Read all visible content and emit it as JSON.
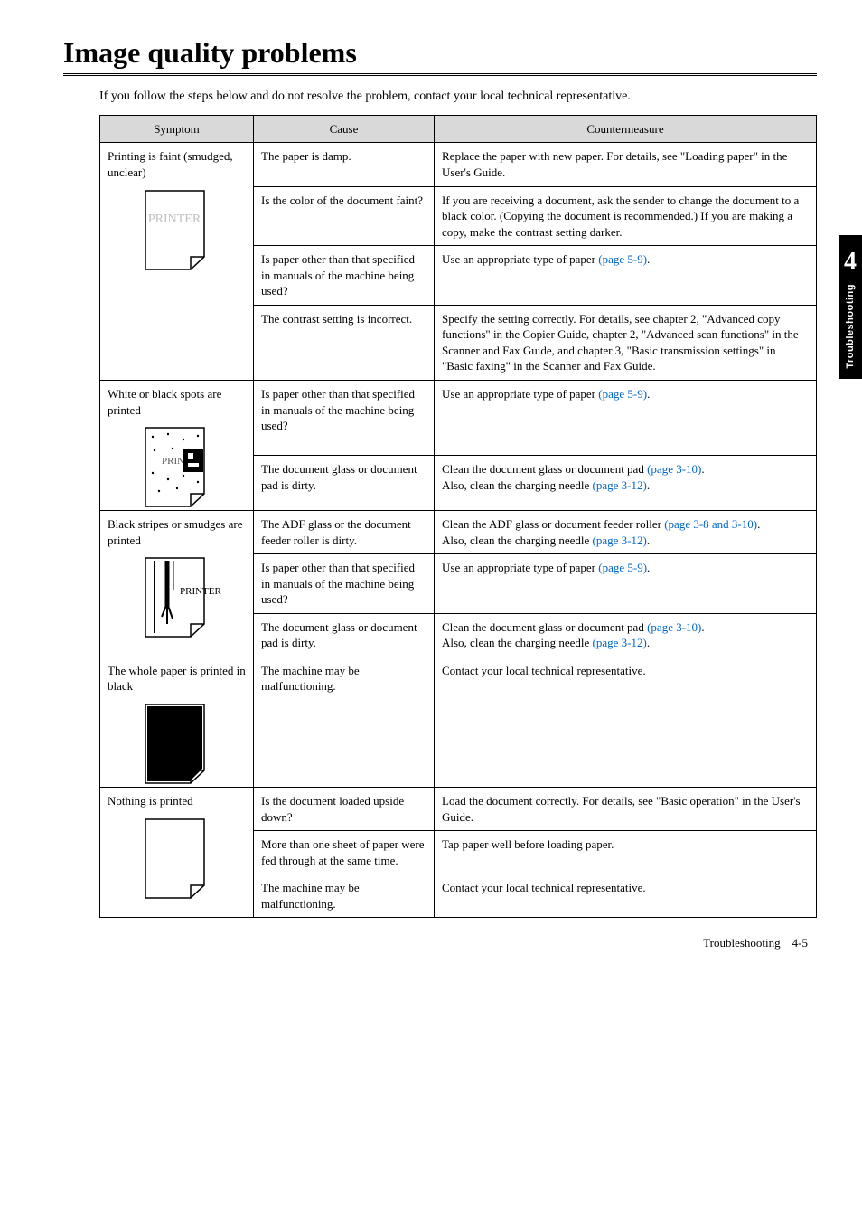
{
  "page": {
    "title": "Image quality problems",
    "intro": "If you follow the steps below and do not resolve the problem, contact your local technical representative.",
    "footer_label": "Troubleshooting",
    "footer_page": "4-5"
  },
  "sidebar": {
    "chapter_number": "4",
    "chapter_label": "Troubleshooting"
  },
  "table": {
    "headers": {
      "symptom": "Symptom",
      "cause": "Cause",
      "countermeasure": "Countermeasure"
    },
    "rows": [
      {
        "symptom": "Printing is faint (smudged, unclear)",
        "icon": "faint",
        "cells": [
          {
            "cause": "The paper is damp.",
            "counter": "Replace the paper with new paper.  For details, see \"Loading paper\" in the User's Guide."
          },
          {
            "cause": "Is the color of the document faint?",
            "counter": "If you are receiving a document, ask the sender to change the document to a black color. (Copying the document is recommended.) If you are making a copy, make the contrast setting darker."
          },
          {
            "cause": "Is paper other than that specified in manuals of the machine being used?",
            "counter_pre": "Use an appropriate type of paper ",
            "counter_link": "(page 5-9)",
            "counter_post": "."
          },
          {
            "cause": "The contrast setting is incorrect.",
            "counter": "Specify the setting correctly.  For details, see chapter 2, \"Advanced copy functions\" in the Copier Guide, chapter 2, \"Advanced scan functions\" in the Scanner and Fax Guide, and chapter 3, \"Basic transmission settings\" in \"Basic faxing\" in the Scanner and Fax Guide."
          }
        ]
      },
      {
        "symptom": "White or black spots are printed",
        "icon": "spots",
        "cells": [
          {
            "cause": "Is paper other than that specified in manuals of the machine being used?",
            "counter_pre": "Use an appropriate type of paper ",
            "counter_link": "(page 5-9)",
            "counter_post": "."
          },
          {
            "cause": "The document glass or document pad is dirty.",
            "counter_parts": [
              {
                "t": "Clean the document glass or document pad "
              },
              {
                "t": "(page 3-10)",
                "link": true
              },
              {
                "t": "."
              },
              {
                "br": true
              },
              {
                "t": "Also, clean the charging needle "
              },
              {
                "t": "(page 3-12)",
                "link": true
              },
              {
                "t": "."
              }
            ]
          }
        ]
      },
      {
        "symptom": "Black stripes or smudges are printed",
        "icon": "stripes",
        "cells": [
          {
            "cause": "The ADF glass or the document feeder roller is dirty.",
            "counter_parts": [
              {
                "t": "Clean the ADF glass or document feeder roller "
              },
              {
                "t": "(page 3-8 and 3-10)",
                "link": true
              },
              {
                "t": "."
              },
              {
                "br": true
              },
              {
                "t": "Also, clean the charging needle "
              },
              {
                "t": "(page 3-12)",
                "link": true
              },
              {
                "t": "."
              }
            ]
          },
          {
            "cause": "Is paper other than that specified in manuals of the machine being used?",
            "counter_pre": "Use an appropriate type of paper ",
            "counter_link": "(page 5-9)",
            "counter_post": "."
          },
          {
            "cause": "The document glass or document pad is dirty.",
            "counter_parts": [
              {
                "t": "Clean the document glass or document pad "
              },
              {
                "t": "(page 3-10)",
                "link": true
              },
              {
                "t": "."
              },
              {
                "br": true
              },
              {
                "t": "Also, clean the charging needle "
              },
              {
                "t": "(page 3-12)",
                "link": true
              },
              {
                "t": "."
              }
            ]
          }
        ]
      },
      {
        "symptom": "The whole paper is printed in black",
        "icon": "black",
        "cells": [
          {
            "cause": "The machine may be malfunctioning.",
            "counter": "Contact your local technical representative."
          }
        ]
      },
      {
        "symptom": "Nothing is printed",
        "icon": "blank",
        "cells": [
          {
            "cause": "Is the document loaded upside down?",
            "counter": "Load the document correctly.  For details, see \"Basic operation\" in the User's Guide."
          },
          {
            "cause": "More than one sheet of paper were fed through at the same time.",
            "counter": "Tap paper well before loading paper."
          },
          {
            "cause": "The machine may be malfunctioning.",
            "counter": "Contact your local technical representative."
          }
        ]
      }
    ]
  }
}
